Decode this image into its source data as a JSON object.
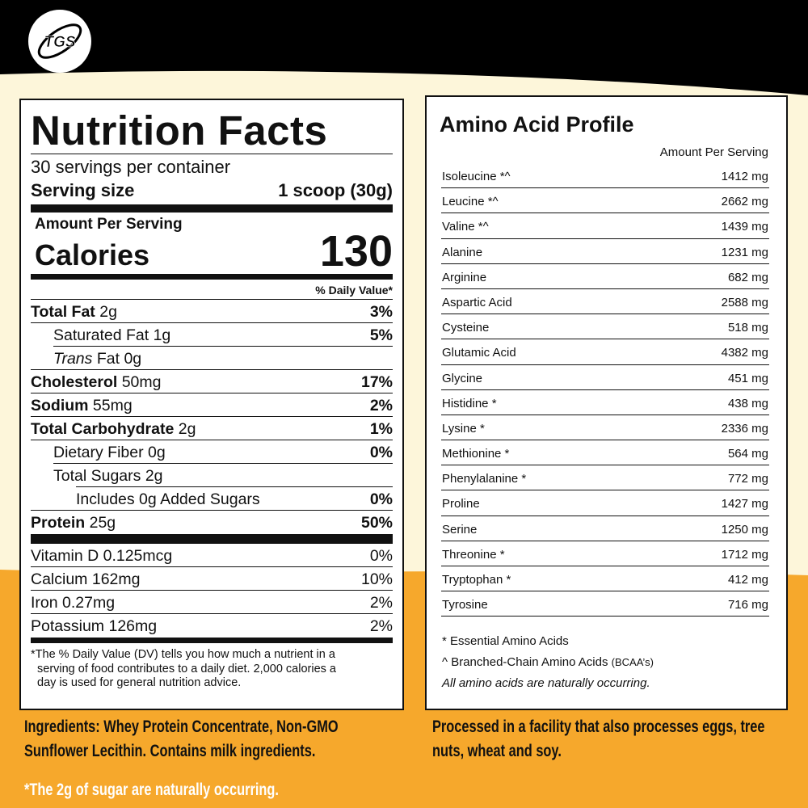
{
  "logo": "TGS",
  "nutrition": {
    "title": "Nutrition Facts",
    "servings": "30 servings per container",
    "serving_size_label": "Serving size",
    "serving_size": "1 scoop (30g)",
    "amount_per_serving": "Amount Per Serving",
    "calories_label": "Calories",
    "calories": 130,
    "dv_header": "% Daily Value*",
    "rows": [
      {
        "name": "Total Fat",
        "amount": "2g",
        "dv": "3%"
      },
      {
        "name": "Saturated Fat",
        "amount": "1g",
        "dv": "5%"
      },
      {
        "prefix": "Trans",
        "name": "Fat",
        "amount": "0g"
      },
      {
        "name": "Cholesterol",
        "amount": "50mg",
        "dv": "17%"
      },
      {
        "name": "Sodium",
        "amount": "55mg",
        "dv": "2%"
      },
      {
        "name": "Total Carbohydrate",
        "amount": "2g",
        "dv": "1%"
      },
      {
        "name": "Dietary Fiber",
        "amount": "0g",
        "dv": "0%"
      },
      {
        "name": "Total Sugars",
        "amount": "2g"
      },
      {
        "name": "Includes 0g Added Sugars",
        "dv": "0%"
      },
      {
        "name": "Protein",
        "amount": "25g",
        "dv": "50%"
      }
    ],
    "vitamins": [
      {
        "name": "Vitamin D",
        "amount": "0.125mcg",
        "dv": "0%"
      },
      {
        "name": "Calcium",
        "amount": "162mg",
        "dv": "10%"
      },
      {
        "name": "Iron",
        "amount": "0.27mg",
        "dv": "2%"
      },
      {
        "name": "Potassium",
        "amount": "126mg",
        "dv": "2%"
      }
    ],
    "footnote": [
      "*The % Daily Value (DV) tells you how much a nutrient in a",
      "serving of food contributes to a daily diet. 2,000 calories a",
      "day is used for general nutrition advice."
    ]
  },
  "amino": {
    "title": "Amino Acid Profile",
    "header": "Amount Per Serving",
    "rows": [
      {
        "name": "Isoleucine *^",
        "amount": "1412 mg"
      },
      {
        "name": "Leucine *^",
        "amount": "2662 mg"
      },
      {
        "name": "Valine *^",
        "amount": "1439 mg"
      },
      {
        "name": "Alanine",
        "amount": "1231 mg"
      },
      {
        "name": "Arginine",
        "amount": "682 mg"
      },
      {
        "name": "Aspartic Acid",
        "amount": "2588 mg"
      },
      {
        "name": "Cysteine",
        "amount": "518 mg"
      },
      {
        "name": "Glutamic Acid",
        "amount": "4382 mg"
      },
      {
        "name": "Glycine",
        "amount": "451 mg"
      },
      {
        "name": "Histidine *",
        "amount": "438 mg"
      },
      {
        "name": "Lysine *",
        "amount": "2336 mg"
      },
      {
        "name": "Methionine *",
        "amount": "564 mg"
      },
      {
        "name": "Phenylalanine *",
        "amount": "772 mg"
      },
      {
        "name": "Proline",
        "amount": "1427 mg"
      },
      {
        "name": "Serine",
        "amount": "1250 mg"
      },
      {
        "name": "Threonine *",
        "amount": "1712 mg"
      },
      {
        "name": "Tryptophan *",
        "amount": "412 mg"
      },
      {
        "name": "Tyrosine",
        "amount": "716 mg"
      }
    ],
    "notes": {
      "essential": "* Essential Amino Acids",
      "bcaa": "^ Branched-Chain Amino Acids",
      "bcaa_abbr": "(BCAA’s)",
      "natural": "All amino acids are naturally occurring."
    }
  },
  "ingredients": [
    "Ingredients: Whey Protein Concentrate, Non-GMO",
    "Sunflower Lecithin. Contains milk ingredients."
  ],
  "allergens": [
    "Processed in a facility that also processes eggs, tree",
    "nuts, wheat and soy."
  ],
  "sugar_note": "*The 2g of sugar are naturally occurring."
}
